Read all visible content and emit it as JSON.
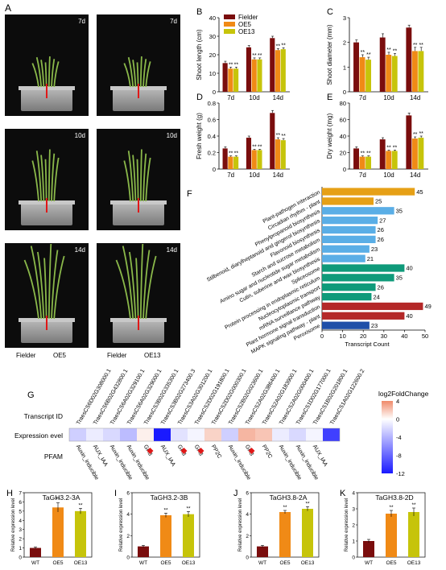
{
  "colors": {
    "fielder": "#7a0d0d",
    "oe5": "#f08a16",
    "oe13": "#c6c40a",
    "wt": "#7a0d0d",
    "heat_pos": "#f08a6a",
    "heat_neg": "#1a1aff",
    "term_orange": "#e6a016",
    "term_blue": "#5aaee6",
    "term_teal": "#0f9a7a",
    "term_red": "#b42828",
    "term_navy": "#1f4fa8"
  },
  "panels": {
    "A": {
      "letter": "A",
      "time_labels": [
        "7d",
        "7d",
        "10d",
        "10d",
        "14d",
        "14d"
      ],
      "bottom_labels": [
        "Fielder",
        "OE5",
        "Fielder",
        "OE13"
      ]
    },
    "B": {
      "letter": "B"
    },
    "C": {
      "letter": "C"
    },
    "D": {
      "letter": "D"
    },
    "E": {
      "letter": "E"
    },
    "F": {
      "letter": "F"
    },
    "G": {
      "letter": "G"
    },
    "H": {
      "letter": "H"
    },
    "I": {
      "letter": "I"
    },
    "J": {
      "letter": "J"
    },
    "K": {
      "letter": "K"
    }
  },
  "legend": [
    "Fielder",
    "OE5",
    "OE13"
  ],
  "chart_data": [
    {
      "id": "B",
      "type": "bar",
      "ylabel": "Shoot length (cm)",
      "ylim": [
        0,
        40
      ],
      "yticks": [
        0,
        10,
        20,
        30,
        40
      ],
      "categories": [
        "7d",
        "10d",
        "14d"
      ],
      "series": [
        {
          "name": "Fielder",
          "values": [
            15.5,
            24,
            29
          ]
        },
        {
          "name": "OE5",
          "values": [
            12.5,
            17.5,
            22.5
          ]
        },
        {
          "name": "OE13",
          "values": [
            12.5,
            17.5,
            23
          ]
        }
      ],
      "errors": [
        [
          1,
          1,
          1
        ],
        [
          0.8,
          0.8,
          0.8
        ],
        [
          0.8,
          0.8,
          0.8
        ]
      ],
      "stars": [
        "**",
        "**",
        "**"
      ]
    },
    {
      "id": "C",
      "type": "bar",
      "ylabel": "Shoot diameter (mm)",
      "ylim": [
        0,
        3
      ],
      "yticks": [
        0,
        1,
        2,
        3
      ],
      "categories": [
        "7d",
        "10d",
        "14d"
      ],
      "series": [
        {
          "name": "Fielder",
          "values": [
            2.0,
            2.2,
            2.6
          ]
        },
        {
          "name": "OE5",
          "values": [
            1.4,
            1.5,
            1.65
          ]
        },
        {
          "name": "OE13",
          "values": [
            1.3,
            1.45,
            1.65
          ]
        }
      ],
      "errors": [
        [
          0.1,
          0.15,
          0.1
        ],
        [
          0.1,
          0.1,
          0.15
        ],
        [
          0.1,
          0.1,
          0.15
        ]
      ],
      "stars": [
        "**",
        "**",
        "**"
      ]
    },
    {
      "id": "D",
      "type": "bar",
      "ylabel": "Fresh weight (g)",
      "ylim": [
        0,
        0.8
      ],
      "yticks": [
        0,
        0.2,
        0.4,
        0.6,
        0.8
      ],
      "categories": [
        "7d",
        "10d",
        "14d"
      ],
      "series": [
        {
          "name": "Fielder",
          "values": [
            0.25,
            0.38,
            0.68
          ]
        },
        {
          "name": "OE5",
          "values": [
            0.15,
            0.23,
            0.36
          ]
        },
        {
          "name": "OE13",
          "values": [
            0.15,
            0.23,
            0.35
          ]
        }
      ],
      "errors": [
        [
          0.02,
          0.02,
          0.03
        ],
        [
          0.01,
          0.01,
          0.02
        ],
        [
          0.01,
          0.01,
          0.02
        ]
      ],
      "stars": [
        "**",
        "**",
        "**"
      ]
    },
    {
      "id": "E",
      "type": "bar",
      "ylabel": "Dry weight (mg)",
      "ylim": [
        0,
        80
      ],
      "yticks": [
        0,
        20,
        40,
        60,
        80
      ],
      "categories": [
        "7d",
        "10d",
        "14d"
      ],
      "series": [
        {
          "name": "Fielder",
          "values": [
            25,
            36,
            65
          ]
        },
        {
          "name": "OE5",
          "values": [
            15,
            22,
            37
          ]
        },
        {
          "name": "OE13",
          "values": [
            15,
            22,
            38
          ]
        }
      ],
      "errors": [
        [
          2,
          2,
          3
        ],
        [
          1,
          1,
          2
        ],
        [
          1,
          1,
          2
        ]
      ],
      "stars": [
        "**",
        "**",
        "**"
      ]
    },
    {
      "id": "F",
      "type": "bar",
      "orientation": "horizontal",
      "xlabel": "Transcript Count",
      "xlim": [
        0,
        50
      ],
      "xticks": [
        0,
        10,
        20,
        30,
        40,
        50
      ],
      "categories": [
        "Plant-pathogen interaction",
        "Circadian rhythm - plant",
        "Phenylpropanoid biosynthesis",
        "Stilbenoid, diarylheptanoid and gingerol biosynthesis",
        "Flavonoid biosynthesis",
        "Starch and sucrose metabolism",
        "Amino sugar and nucleotide sugar metabolism",
        "Cutin, suberine and wax biosynthesis",
        "Spliceosome",
        "Protein processing in endoplasmic reticulum",
        "Nucleocytoplasmic transport",
        "mRNA surveillance pathway",
        "Plant hormone signal transduction",
        "MAPK signaling pathway - plant",
        "Peroxisome"
      ],
      "values": [
        45,
        25,
        35,
        27,
        26,
        26,
        23,
        21,
        40,
        35,
        26,
        24,
        49,
        40,
        23
      ],
      "bar_colors": [
        "term_orange",
        "term_orange",
        "term_blue",
        "term_blue",
        "term_blue",
        "term_blue",
        "term_blue",
        "term_blue",
        "term_teal",
        "term_teal",
        "term_teal",
        "term_teal",
        "term_red",
        "term_red",
        "term_navy"
      ]
    },
    {
      "id": "G",
      "type": "heatmap",
      "row_labels": [
        "Transcript ID",
        "Expression evel",
        "PFAM"
      ],
      "transcripts": [
        "TraesCS6D02G308000.1",
        "TraesCS6B02G432800.1",
        "TraesCS6A02G329100.1",
        "TraesCS6A02G329000.1",
        "TraesCS3B02G335300.1",
        "TraesCS3B02G273400.3",
        "TraesCS3A02G301200.1",
        "TraesCS2D02G191800.1",
        "TraesCS2D02G000300.1",
        "TraesCS2B02G023600.1",
        "TraesCS2A02G386400.1",
        "TraesCS2A02G183900.1",
        "TraesCS2A02G000400.1",
        "TraesCS1D02G177000.1",
        "TraesCS1B02G201800.1",
        "TraesCS1A02G122600.2"
      ],
      "values": [
        -2.5,
        -1,
        -2,
        -3.5,
        0.5,
        -12,
        -1.5,
        -0.5,
        1.5,
        -2.5,
        2.5,
        2,
        -1,
        -2,
        -0.5,
        -10
      ],
      "pfam": [
        "Auxin_inducible",
        "AUX_IAA",
        "Auxin_inducible",
        "Auxin_inducible",
        "GH3",
        "AUX_IAA",
        "GH3",
        "GH3",
        "PP2C",
        "Auxin_inducible",
        "GH3",
        "PP2C",
        "Auxin_inducible",
        "Auxin_inducible",
        "AUX_IAA",
        ""
      ],
      "marked_gh3": [
        4,
        6,
        7,
        10
      ],
      "legend_title": "log2FoldChange",
      "legend_ticks": [
        4,
        0,
        -4,
        -8,
        -12
      ],
      "vlim": [
        -12,
        4
      ]
    },
    {
      "id": "H",
      "type": "bar",
      "title": "TaGH3.2-3A",
      "ylabel": "Relative expression level",
      "ylim": [
        0,
        7
      ],
      "yticks": [
        0,
        1,
        2,
        3,
        4,
        5,
        6,
        7
      ],
      "categories": [
        "WT",
        "OE5",
        "OE13"
      ],
      "values": [
        1,
        5.4,
        5.0
      ],
      "errors": [
        0.1,
        0.5,
        0.3
      ],
      "stars": [
        "",
        "**",
        "**"
      ]
    },
    {
      "id": "I",
      "type": "bar",
      "title": "TaGH3.2-3B",
      "ylabel": "Relative expression level",
      "ylim": [
        0,
        6
      ],
      "yticks": [
        0,
        2,
        4,
        6
      ],
      "categories": [
        "WT",
        "OE5",
        "OE13"
      ],
      "values": [
        1,
        3.9,
        4.0
      ],
      "errors": [
        0.1,
        0.2,
        0.25
      ],
      "stars": [
        "",
        "**",
        "**"
      ]
    },
    {
      "id": "J",
      "type": "bar",
      "title": "TaGH3.8-2A",
      "ylabel": "Relative expression level",
      "ylim": [
        0,
        6
      ],
      "yticks": [
        0,
        2,
        4,
        6
      ],
      "categories": [
        "WT",
        "OE5",
        "OE13"
      ],
      "values": [
        1,
        4.2,
        4.5
      ],
      "errors": [
        0.1,
        0.15,
        0.2
      ],
      "stars": [
        "",
        "**",
        "**"
      ]
    },
    {
      "id": "K",
      "type": "bar",
      "title": "TaGH3.8-2D",
      "ylabel": "Relative expression level",
      "ylim": [
        0,
        4
      ],
      "yticks": [
        0,
        1,
        2,
        3,
        4
      ],
      "categories": [
        "WT",
        "OE5",
        "OE13"
      ],
      "values": [
        1,
        2.7,
        2.8
      ],
      "errors": [
        0.1,
        0.2,
        0.25
      ],
      "stars": [
        "",
        "**",
        "**"
      ]
    }
  ]
}
